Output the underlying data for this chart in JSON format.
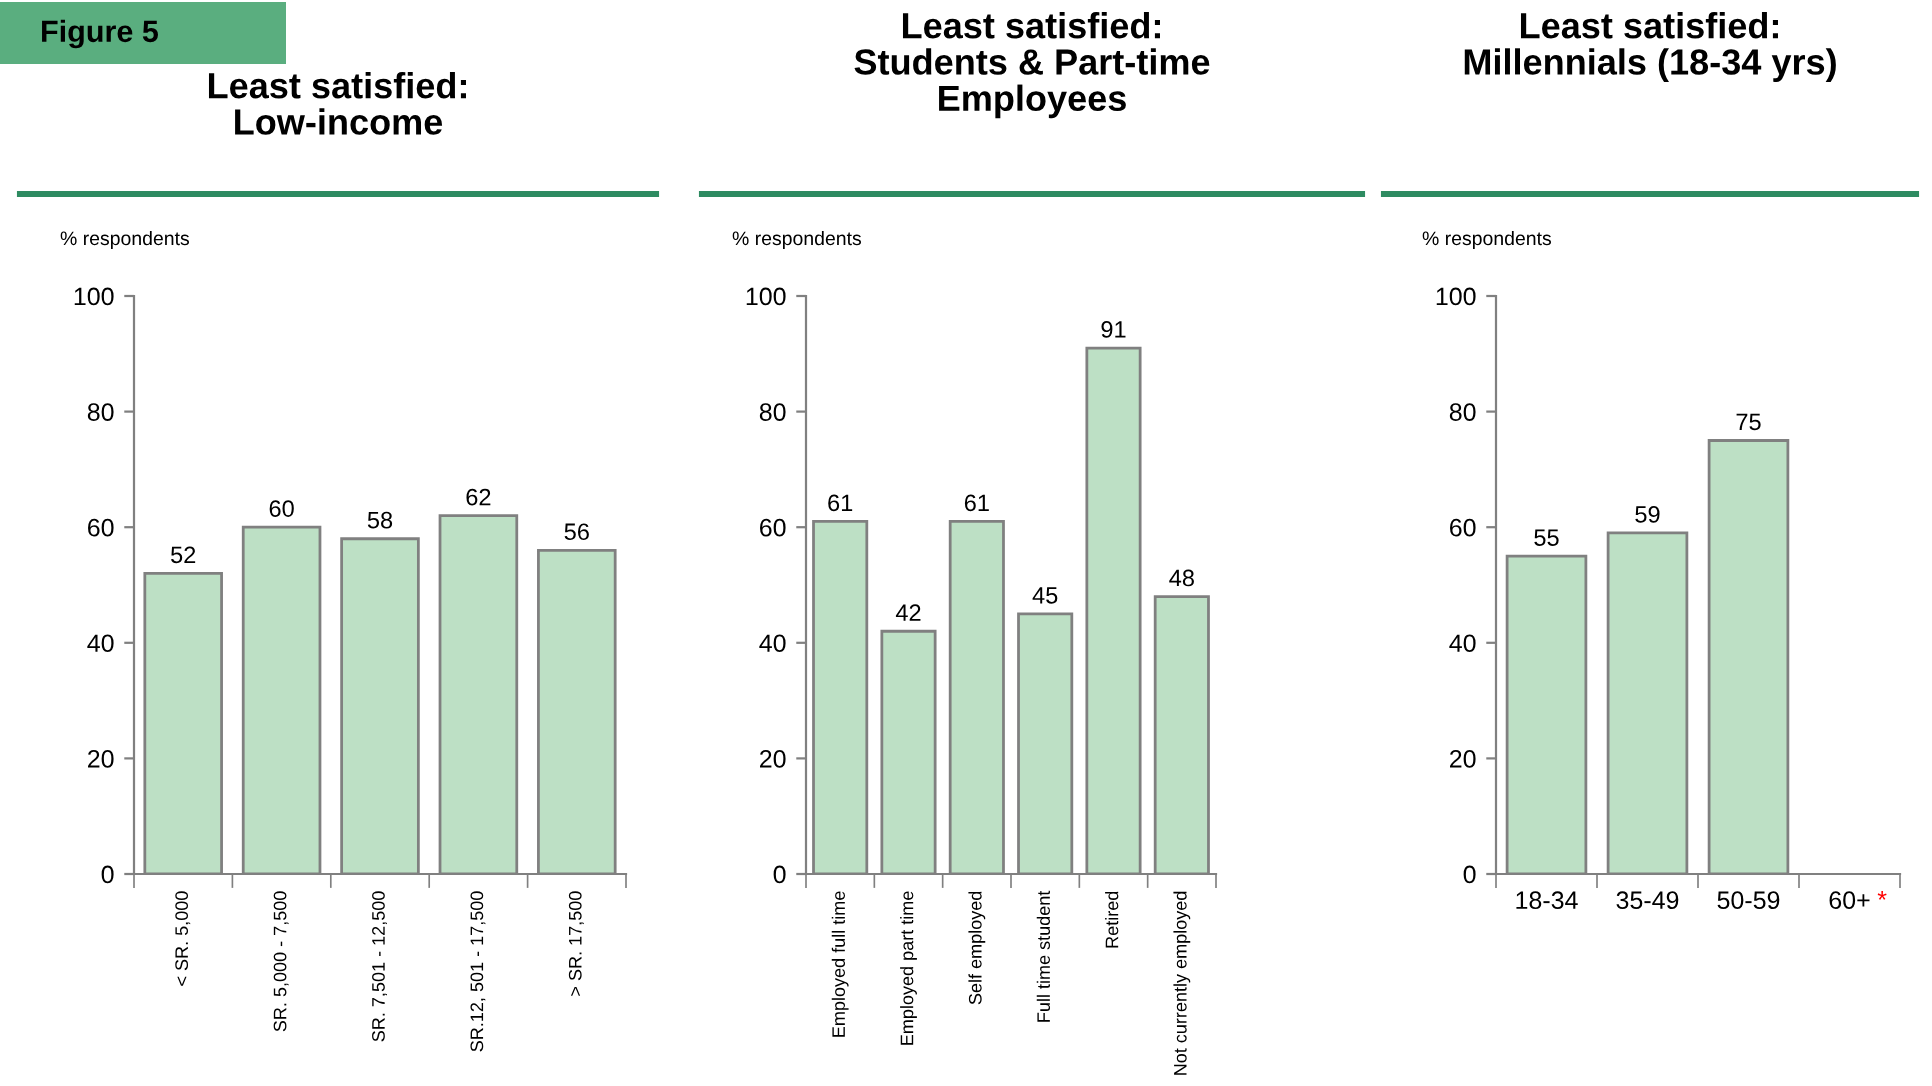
{
  "chart_data": [
    {
      "type": "bar",
      "title": "Least satisfied:\nLow-income",
      "ylabel": "% respondents",
      "annotations": [
        "Figure 5"
      ],
      "categories": [
        "< SR. 5,000",
        "SR. 5,000 - 7,500",
        "SR. 7,501 - 12,500",
        "SR.12, 501 - 17,500",
        "> SR. 17,500"
      ],
      "values": [
        52,
        60,
        58,
        62,
        56
      ],
      "color": "#bde0c5",
      "ylim": [
        0,
        100
      ],
      "yticks": [
        0,
        20,
        40,
        60,
        80,
        100
      ],
      "data_labels": true,
      "grid": false,
      "legend": false
    },
    {
      "type": "bar",
      "title": "Least satisfied:\nStudents & Part-time\nEmployees",
      "ylabel": "% respondents",
      "categories": [
        "Employed full time",
        "Employed part time",
        "Self employed",
        "Full time student",
        "Retired",
        "Not currently employed"
      ],
      "values": [
        61,
        42,
        61,
        45,
        91,
        48
      ],
      "color": "#bde0c5",
      "ylim": [
        0,
        100
      ],
      "yticks": [
        0,
        20,
        40,
        60,
        80,
        100
      ],
      "data_labels": true,
      "grid": false,
      "legend": false
    },
    {
      "type": "bar",
      "title": "Least satisfied:\nMillennials (18-34 yrs)",
      "ylabel": "% respondents",
      "annotations": [
        "*"
      ],
      "categories": [
        "18-34",
        "35-49",
        "50-59",
        "60+"
      ],
      "values": [
        55,
        59,
        75,
        null
      ],
      "color": "#bde0c5",
      "ylim": [
        0,
        100
      ],
      "yticks": [
        0,
        20,
        40,
        60,
        80,
        100
      ],
      "data_labels": true,
      "grid": false,
      "legend": false
    }
  ]
}
